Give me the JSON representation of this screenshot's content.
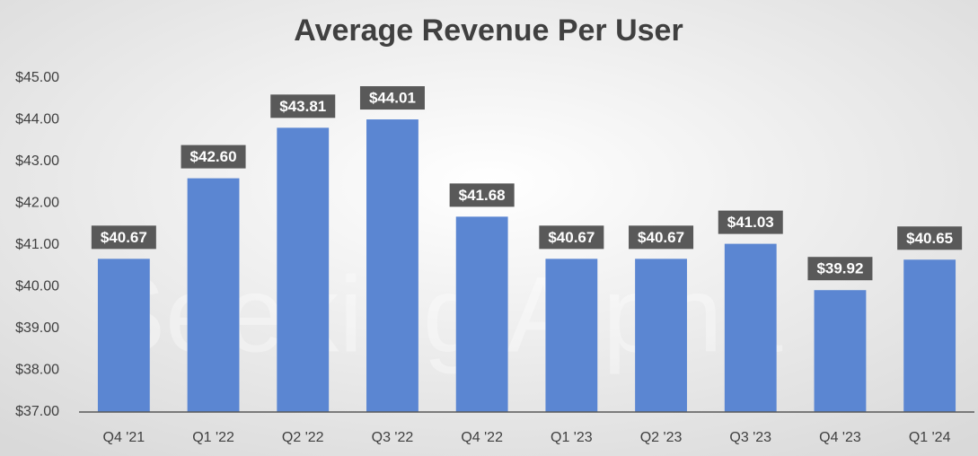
{
  "chart_data": {
    "type": "bar",
    "title": "Average Revenue Per User",
    "watermark": "Seeking Alpha",
    "categories": [
      "Q4 '21",
      "Q1 '22",
      "Q2 '22",
      "Q3 '22",
      "Q4 '22",
      "Q1 '23",
      "Q2 '23",
      "Q3 '23",
      "Q4 '23",
      "Q1 '24"
    ],
    "values": [
      40.67,
      42.6,
      43.81,
      44.01,
      41.68,
      40.67,
      40.67,
      41.03,
      39.92,
      40.65
    ],
    "value_labels": [
      "$40.67",
      "$42.60",
      "$43.81",
      "$44.01",
      "$41.68",
      "$40.67",
      "$40.67",
      "$41.03",
      "$39.92",
      "$40.65"
    ],
    "color": "#5b86d2",
    "ylim": [
      37,
      45
    ],
    "yticks": [
      {
        "value": 37,
        "label": "$37.00"
      },
      {
        "value": 38,
        "label": "$38.00"
      },
      {
        "value": 39,
        "label": "$39.00"
      },
      {
        "value": 40,
        "label": "$40.00"
      },
      {
        "value": 41,
        "label": "$41.00"
      },
      {
        "value": 42,
        "label": "$42.00"
      },
      {
        "value": 43,
        "label": "$43.00"
      },
      {
        "value": 44,
        "label": "$44.00"
      },
      {
        "value": 45,
        "label": "$45.00"
      }
    ],
    "grid": false
  }
}
